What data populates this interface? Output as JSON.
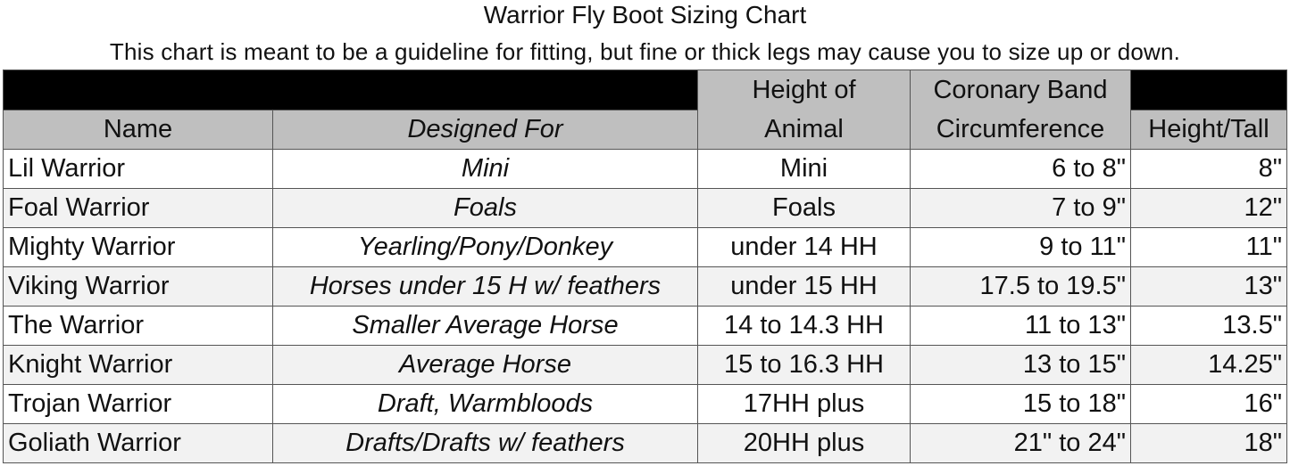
{
  "title": "Warrior Fly Boot Sizing Chart",
  "subtitle": "This chart is meant to be a guideline for fitting, but fine or thick legs may cause you to size up or down.",
  "columns": {
    "name": "Name",
    "designed_for": "Designed For",
    "height_of_animal_1": "Height of",
    "height_of_animal_2": "Animal",
    "coronary_1": "Coronary Band",
    "coronary_2": "Circumference",
    "height_tall": "Height/Tall"
  },
  "rows": [
    [
      "Lil Warrior",
      "Mini",
      "Mini",
      "6 to 8\"",
      "8\""
    ],
    [
      "Foal Warrior",
      "Foals",
      "Foals",
      "7 to 9\"",
      "12\""
    ],
    [
      "Mighty Warrior",
      "Yearling/Pony/Donkey",
      "under 14 HH",
      "9 to 11\"",
      "11\""
    ],
    [
      "Viking Warrior",
      "Horses under 15 H w/ feathers",
      "under 15 HH",
      "17.5 to  19.5\"",
      "13\""
    ],
    [
      "The Warrior",
      "Smaller Average Horse",
      "14 to 14.3 HH",
      "11 to 13\"",
      "13.5\""
    ],
    [
      "Knight Warrior",
      "Average Horse",
      "15 to 16.3 HH",
      "13 to 15\"",
      "14.25\""
    ],
    [
      "Trojan Warrior",
      "Draft, Warmbloods",
      "17HH plus",
      "15 to 18\"",
      "16\""
    ],
    [
      "Goliath Warrior",
      "Drafts/Drafts w/ feathers",
      "20HH plus",
      "21\" to 24\"",
      "18\""
    ]
  ],
  "colors": {
    "header_bar": "#000000",
    "header_bg": "#bfbfbf",
    "row_alt": "#f2f2f2"
  }
}
